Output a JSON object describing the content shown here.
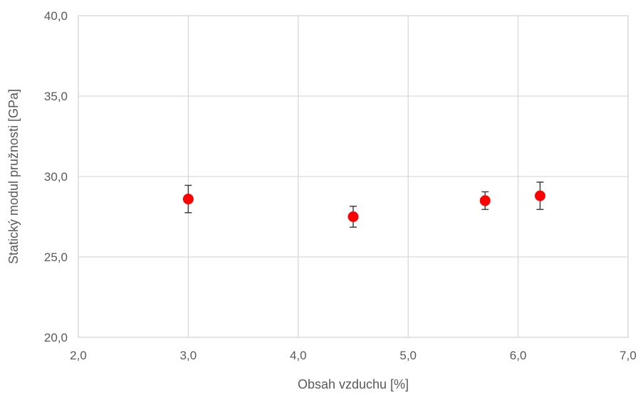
{
  "chart_data": {
    "type": "scatter",
    "title": "",
    "xlabel": "Obsah vzduchu [%]",
    "ylabel": "Statický modul pružnosti  [GPa]",
    "xlim": [
      2.0,
      7.0
    ],
    "ylim": [
      20.0,
      40.0
    ],
    "xticks": [
      2.0,
      3.0,
      4.0,
      5.0,
      6.0,
      7.0
    ],
    "yticks": [
      20.0,
      25.0,
      30.0,
      35.0,
      40.0
    ],
    "xtick_labels": [
      "2,0",
      "3,0",
      "4,0",
      "5,0",
      "6,0",
      "7,0"
    ],
    "ytick_labels": [
      "20,0",
      "25,0",
      "30,0",
      "35,0",
      "40,0"
    ],
    "grid": true,
    "marker_color": "#ff0000",
    "errorbar_color": "#404040",
    "series": [
      {
        "x": [
          3.0,
          4.5,
          5.7,
          6.2
        ],
        "y": [
          28.6,
          27.5,
          28.5,
          28.8
        ],
        "yerr_low": [
          0.85,
          0.65,
          0.55,
          0.85
        ],
        "yerr_high": [
          0.85,
          0.65,
          0.55,
          0.85
        ]
      }
    ]
  }
}
